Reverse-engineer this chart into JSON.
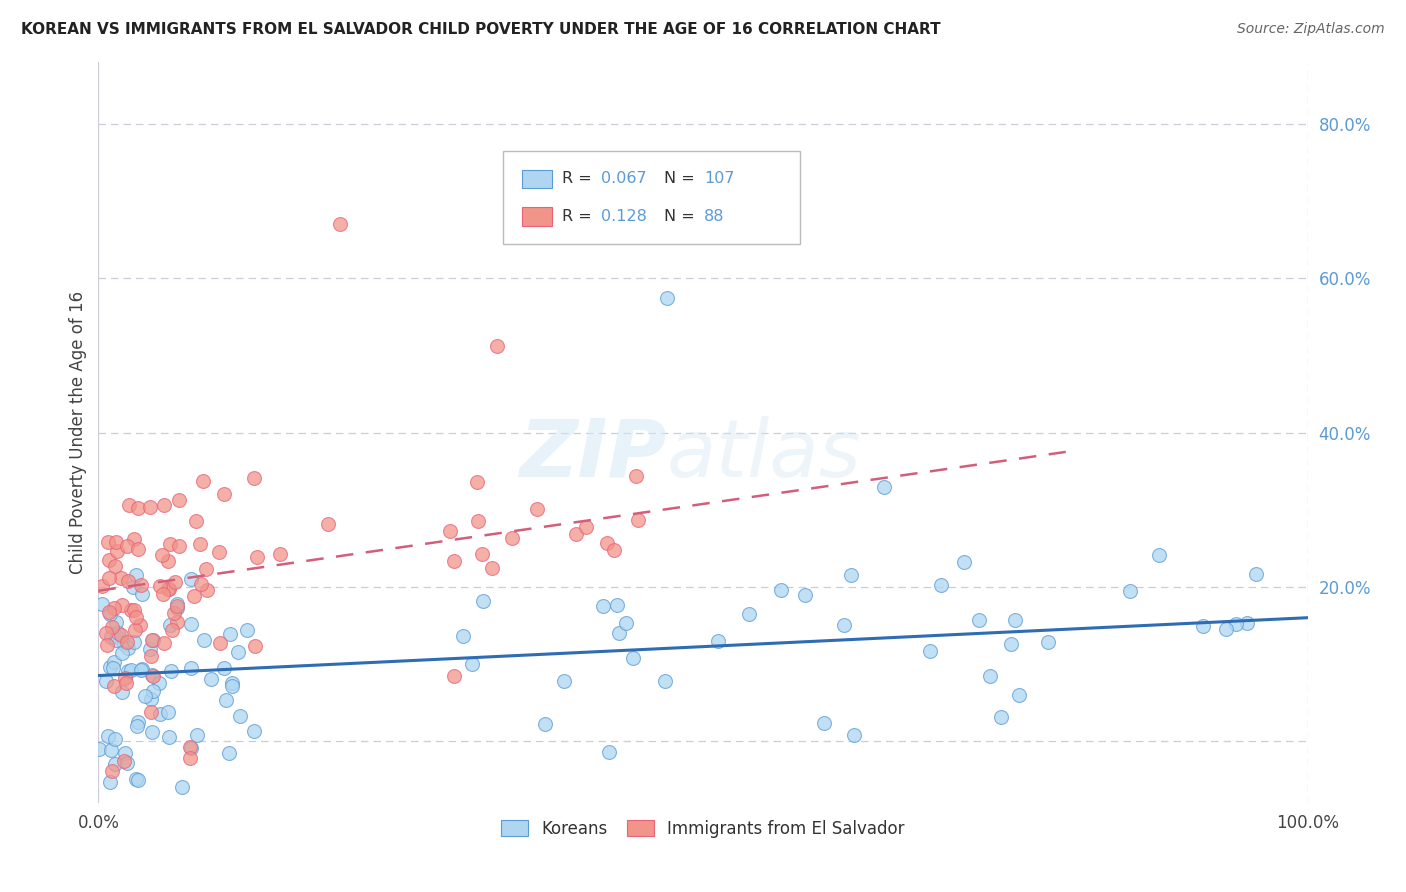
{
  "title": "KOREAN VS IMMIGRANTS FROM EL SALVADOR CHILD POVERTY UNDER THE AGE OF 16 CORRELATION CHART",
  "source": "Source: ZipAtlas.com",
  "ylabel": "Child Poverty Under the Age of 16",
  "korean_R": 0.067,
  "korean_N": 107,
  "salvador_R": 0.128,
  "salvador_N": 88,
  "korean_color": "#AED6F1",
  "salvador_color": "#F1948A",
  "korean_edge_color": "#5B9BD5",
  "salvador_edge_color": "#E8637A",
  "korean_line_color": "#2E6DB4",
  "salvador_line_color": "#D45E7A",
  "background_color": "#FFFFFF",
  "grid_color": "#CCCCDD",
  "watermark_zip": "ZIP",
  "watermark_atlas": "atlas",
  "xlim_min": 0.0,
  "xlim_max": 1.0,
  "ylim_min": -0.08,
  "ylim_max": 0.88,
  "ytick_vals": [
    0.0,
    0.2,
    0.4,
    0.6,
    0.8
  ],
  "ytick_labels": [
    "",
    "20.0%",
    "40.0%",
    "60.0%",
    "80.0%"
  ],
  "legend_R1": "0.067",
  "legend_N1": "107",
  "legend_R2": "0.128",
  "legend_N2": "88",
  "legend_label1": "Koreans",
  "legend_label2": "Immigrants from El Salvador",
  "title_fontsize": 11,
  "axis_label_color": "#5B9BD5",
  "tick_label_color": "#5B9BD5"
}
